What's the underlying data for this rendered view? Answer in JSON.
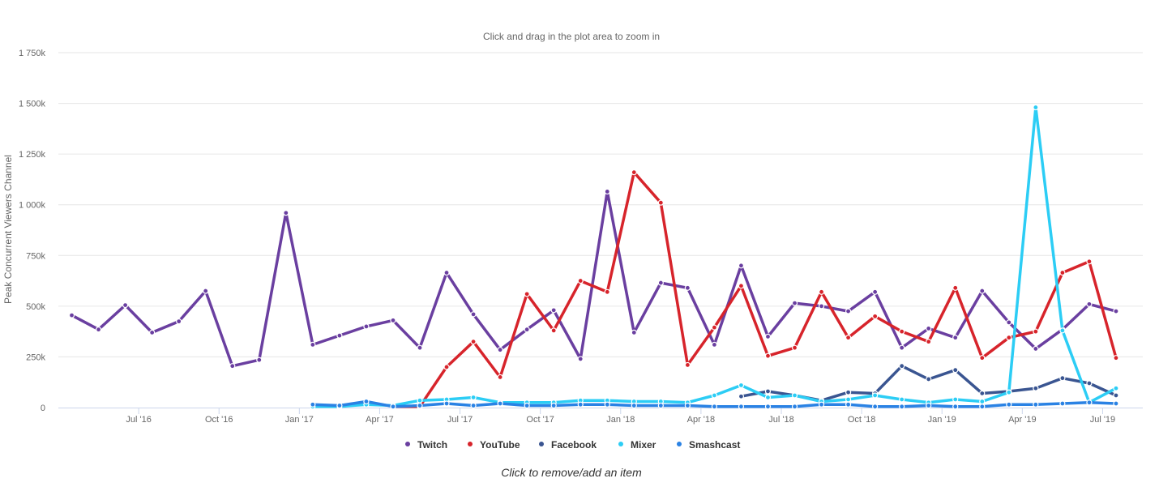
{
  "subtitle": "Click and drag in the plot area to zoom in",
  "caption": "Click to remove/add an item",
  "chart_data": {
    "type": "line",
    "ylabel": "Peak Concurrent Viewers Channel",
    "ylim": [
      0,
      1750000
    ],
    "yticks": [
      0,
      250000,
      500000,
      750000,
      1000000,
      1250000,
      1500000,
      1750000
    ],
    "ytick_labels": [
      "0",
      "250k",
      "500k",
      "750k",
      "1 000k",
      "1 250k",
      "1 500k",
      "1 750k"
    ],
    "x_start": "2016-04",
    "x_range": [
      0,
      40.5
    ],
    "xticks": [
      3,
      6,
      9,
      12,
      15,
      18,
      21,
      24,
      27,
      30,
      33,
      36,
      39
    ],
    "xtick_labels": [
      "Jul '16",
      "Oct '16",
      "Jan '17",
      "Apr '17",
      "Jul '17",
      "Oct '17",
      "Jan '18",
      "Apr '18",
      "Jul '18",
      "Oct '18",
      "Jan '19",
      "Apr '19",
      "Jul '19"
    ],
    "grid": true,
    "legend": "bottom-center",
    "series": [
      {
        "name": "Twitch",
        "color": "#6a3fa0",
        "values": [
          455000,
          385000,
          505000,
          370000,
          425000,
          575000,
          205000,
          235000,
          960000,
          310000,
          355000,
          400000,
          430000,
          295000,
          665000,
          460000,
          285000,
          385000,
          480000,
          240000,
          1065000,
          370000,
          615000,
          590000,
          310000,
          700000,
          350000,
          515000,
          500000,
          475000,
          570000,
          295000,
          390000,
          345000,
          575000,
          420000,
          290000,
          385000,
          510000,
          475000
        ]
      },
      {
        "name": "YouTube",
        "color": "#d7242b",
        "values": [
          null,
          null,
          null,
          null,
          null,
          null,
          null,
          null,
          null,
          null,
          null,
          null,
          5000,
          5000,
          200000,
          325000,
          150000,
          560000,
          380000,
          625000,
          570000,
          1160000,
          1010000,
          210000,
          395000,
          600000,
          255000,
          295000,
          570000,
          345000,
          450000,
          375000,
          325000,
          590000,
          245000,
          345000,
          375000,
          665000,
          720000,
          245000
        ]
      },
      {
        "name": "Facebook",
        "color": "#3a5591",
        "values": [
          null,
          null,
          null,
          null,
          null,
          null,
          null,
          null,
          null,
          null,
          null,
          null,
          null,
          null,
          null,
          null,
          null,
          null,
          null,
          null,
          null,
          null,
          null,
          null,
          null,
          55000,
          80000,
          60000,
          35000,
          75000,
          70000,
          205000,
          140000,
          185000,
          70000,
          80000,
          95000,
          145000,
          120000,
          60000
        ]
      },
      {
        "name": "Mixer",
        "color": "#2ccdf5",
        "values": [
          null,
          null,
          null,
          null,
          null,
          null,
          null,
          null,
          null,
          5000,
          5000,
          15000,
          10000,
          35000,
          40000,
          50000,
          25000,
          25000,
          25000,
          35000,
          35000,
          30000,
          30000,
          25000,
          60000,
          110000,
          50000,
          60000,
          30000,
          40000,
          60000,
          40000,
          25000,
          40000,
          30000,
          75000,
          1480000,
          380000,
          25000,
          95000
        ]
      },
      {
        "name": "Smashcast",
        "color": "#2a82e4",
        "values": [
          null,
          null,
          null,
          null,
          null,
          null,
          null,
          null,
          null,
          15000,
          10000,
          30000,
          5000,
          10000,
          20000,
          10000,
          20000,
          10000,
          10000,
          15000,
          15000,
          10000,
          10000,
          10000,
          5000,
          5000,
          5000,
          5000,
          15000,
          15000,
          5000,
          5000,
          10000,
          5000,
          5000,
          15000,
          15000,
          20000,
          25000,
          20000
        ]
      }
    ]
  }
}
